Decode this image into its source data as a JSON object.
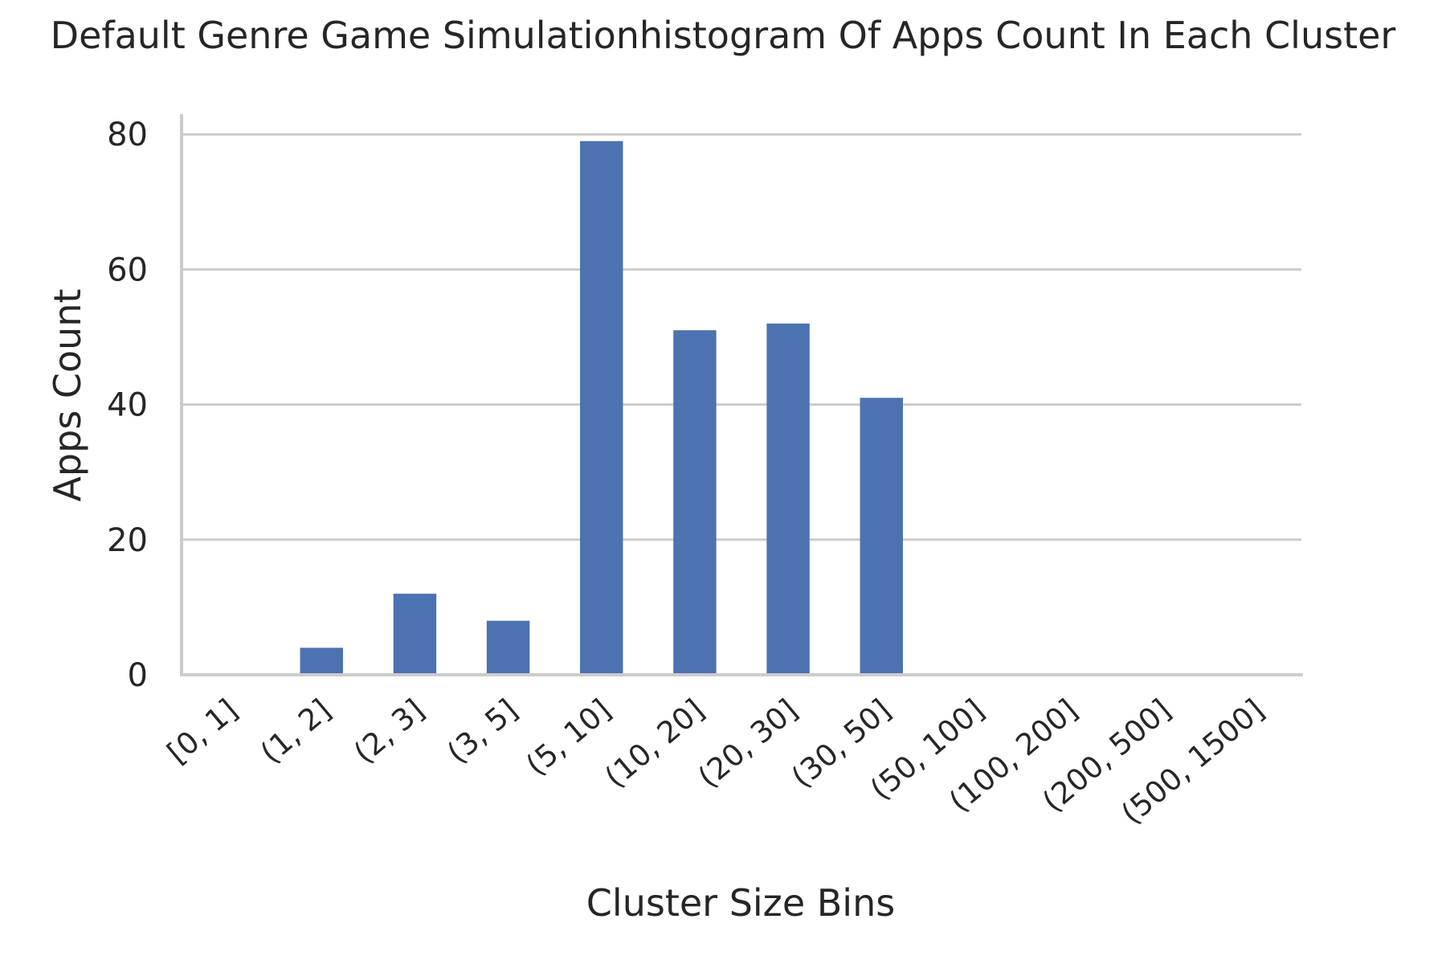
{
  "chart_data": {
    "type": "bar",
    "title": "Default Genre Game Simulationhistogram Of Apps Count In Each Cluster",
    "xlabel": "Cluster Size Bins",
    "ylabel": "Apps Count",
    "categories": [
      "[0, 1]",
      "(1, 2]",
      "(2, 3]",
      "(3, 5]",
      "(5, 10]",
      "(10, 20]",
      "(20, 30]",
      "(30, 50]",
      "(50, 100]",
      "(100, 200]",
      "(200, 500]",
      "(500, 1500]"
    ],
    "values": [
      0,
      4,
      12,
      8,
      79,
      51,
      52,
      41,
      0,
      0,
      0,
      0
    ],
    "ylim": [
      0,
      83
    ],
    "yticks": [
      0,
      20,
      40,
      60,
      80
    ],
    "grid": "horizontal",
    "bar_color": "#4c72b0",
    "legend": "none"
  }
}
